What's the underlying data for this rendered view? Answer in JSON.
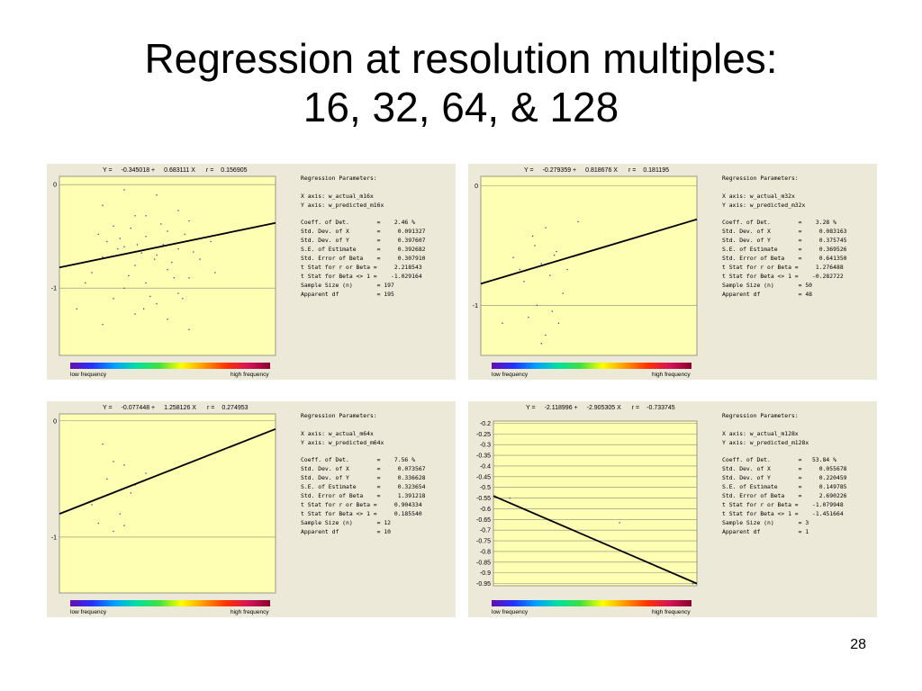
{
  "title": {
    "line1": "Regression at resolution multiples:",
    "line2": "16, 32, 64, & 128"
  },
  "page_number": "28",
  "legend": {
    "low": "low frequency",
    "high": "high frequency"
  },
  "chart_data": [
    {
      "type": "scatter",
      "id": "m16",
      "equation": {
        "y_label": "Y =",
        "intercept": "-0.345018 +",
        "slope": "0.683111 X",
        "r_label": "r =",
        "r": "0.156905"
      },
      "ylim": [
        -1.65,
        0.08
      ],
      "yticks": [
        "0",
        "-1"
      ],
      "ytick_values": [
        0,
        -1
      ],
      "line": {
        "y_left": -0.8,
        "y_right": -0.37
      },
      "points": [
        [
          0.3,
          -0.05
        ],
        [
          0.45,
          -0.1
        ],
        [
          0.2,
          -0.2
        ],
        [
          0.55,
          -0.25
        ],
        [
          0.35,
          -0.3
        ],
        [
          0.6,
          -0.35
        ],
        [
          0.25,
          -0.4
        ],
        [
          0.5,
          -0.45
        ],
        [
          0.4,
          -0.5
        ],
        [
          0.7,
          -0.55
        ],
        [
          0.3,
          -0.6
        ],
        [
          0.55,
          -0.62
        ],
        [
          0.45,
          -0.68
        ],
        [
          0.2,
          -0.7
        ],
        [
          0.65,
          -0.72
        ],
        [
          0.35,
          -0.78
        ],
        [
          0.5,
          -0.82
        ],
        [
          0.15,
          -0.85
        ],
        [
          0.6,
          -0.9
        ],
        [
          0.4,
          -0.95
        ],
        [
          0.3,
          -1.0
        ],
        [
          0.55,
          -1.05
        ],
        [
          0.25,
          -1.1
        ],
        [
          0.45,
          -1.15
        ],
        [
          0.35,
          -1.25
        ],
        [
          0.5,
          -1.3
        ],
        [
          0.2,
          -1.35
        ],
        [
          0.6,
          -1.4
        ],
        [
          0.4,
          -0.3
        ],
        [
          0.28,
          -0.52
        ],
        [
          0.48,
          -0.58
        ],
        [
          0.38,
          -0.66
        ],
        [
          0.52,
          -0.75
        ],
        [
          0.32,
          -0.88
        ],
        [
          0.42,
          -1.08
        ],
        [
          0.58,
          -0.48
        ],
        [
          0.22,
          -0.55
        ],
        [
          0.62,
          -0.65
        ],
        [
          0.12,
          -0.95
        ],
        [
          0.72,
          -0.85
        ],
        [
          0.08,
          -1.2
        ],
        [
          0.33,
          -0.42
        ],
        [
          0.47,
          -0.38
        ],
        [
          0.36,
          -0.58
        ],
        [
          0.44,
          -0.72
        ],
        [
          0.27,
          -0.62
        ],
        [
          0.53,
          -0.9
        ],
        [
          0.39,
          -1.2
        ],
        [
          0.57,
          -1.1
        ],
        [
          0.18,
          -0.48
        ]
      ]
    },
    {
      "type": "scatter",
      "id": "m32",
      "equation": {
        "y_label": "Y =",
        "intercept": "-0.279359 +",
        "slope": "0.818676 X",
        "r_label": "r =",
        "r": "0.181195"
      },
      "ylim": [
        -1.42,
        0.08
      ],
      "yticks": [
        "0",
        "-1"
      ],
      "ytick_values": [
        0,
        -1
      ],
      "line": {
        "y_left": -0.82,
        "y_right": -0.28
      },
      "points": [
        [
          0.3,
          -0.35
        ],
        [
          0.25,
          -0.5
        ],
        [
          0.35,
          -0.55
        ],
        [
          0.15,
          -0.6
        ],
        [
          0.28,
          -0.65
        ],
        [
          0.4,
          -0.7
        ],
        [
          0.32,
          -0.75
        ],
        [
          0.2,
          -0.8
        ],
        [
          0.38,
          -0.9
        ],
        [
          0.26,
          -1.0
        ],
        [
          0.33,
          -1.05
        ],
        [
          0.22,
          -1.1
        ],
        [
          0.36,
          -1.15
        ],
        [
          0.3,
          -1.25
        ],
        [
          0.28,
          -1.32
        ],
        [
          0.1,
          -1.15
        ],
        [
          0.45,
          -0.3
        ],
        [
          0.24,
          -0.42
        ],
        [
          0.34,
          -0.58
        ],
        [
          0.18,
          -0.7
        ]
      ]
    },
    {
      "type": "scatter",
      "id": "m64",
      "equation": {
        "y_label": "Y =",
        "intercept": "-0.077448 +",
        "slope": "1.258126 X",
        "r_label": "r =",
        "r": "0.274953"
      },
      "ylim": [
        -1.48,
        0.06
      ],
      "yticks": [
        "0",
        "-1"
      ],
      "ytick_values": [
        0,
        -1
      ],
      "line": {
        "y_left": -0.8,
        "y_right": -0.07
      },
      "points": [
        [
          0.2,
          -0.2
        ],
        [
          0.25,
          -0.35
        ],
        [
          0.3,
          -0.38
        ],
        [
          0.22,
          -0.5
        ],
        [
          0.35,
          -0.55
        ],
        [
          0.15,
          -0.72
        ],
        [
          0.28,
          -0.8
        ],
        [
          0.25,
          -0.95
        ],
        [
          0.3,
          -0.9
        ],
        [
          0.18,
          -0.88
        ],
        [
          0.33,
          -0.62
        ],
        [
          0.4,
          -0.45
        ]
      ]
    },
    {
      "type": "scatter",
      "id": "m128",
      "equation": {
        "y_label": "Y =",
        "intercept": "-2.118996 +",
        "slope": "-2.905305 X",
        "r_label": "r =",
        "r": "-0.733745"
      },
      "ylim": [
        -0.96,
        -0.19
      ],
      "yticks": [
        "-0.2",
        "-0.25",
        "-0.3",
        "-0.35",
        "-0.4",
        "-0.45",
        "-0.5",
        "-0.55",
        "-0.6",
        "-0.65",
        "-0.7",
        "-0.75",
        "-0.8",
        "-0.85",
        "-0.9",
        "-0.95"
      ],
      "ytick_values": [
        -0.2,
        -0.25,
        -0.3,
        -0.35,
        -0.4,
        -0.45,
        -0.5,
        -0.55,
        -0.6,
        -0.65,
        -0.7,
        -0.75,
        -0.8,
        -0.85,
        -0.9,
        -0.95
      ],
      "line": {
        "y_left": -0.54,
        "y_right": -0.95
      },
      "points": [
        [
          0.08,
          -0.55
        ],
        [
          0.62,
          -0.665
        ],
        [
          0.98,
          -0.95
        ]
      ]
    }
  ],
  "panels": [
    {
      "heading": "Regression Parameters:",
      "x_axis": "X axis: w_actual_m16x",
      "y_axis": "Y axis: w_predicted_m16x",
      "rows": [
        "Coeff. of Det.        =    2.46 %",
        "Std. Dev. of X        =     0.091327",
        "Std. Dev. of Y        =     0.397607",
        "S.E. of Estimate      =     0.392682",
        "Std. Error of Beta    =     0.307910",
        "t Stat for r or Beta =     2.218543",
        "t Stat for Beta <> 1 =    -1.029164",
        "Sample Size (n)       = 197",
        "Apparent df           = 195"
      ]
    },
    {
      "heading": "Regression Parameters:",
      "x_axis": "X axis: w_actual_m32x",
      "y_axis": "Y axis: w_predicted_m32x",
      "rows": [
        "Coeff. of Det.        =    3.28 %",
        "Std. Dev. of X        =     0.083163",
        "Std. Dev. of Y        =     0.375745",
        "S.E. of Estimate      =     0.369526",
        "Std. Error of Beta    =     0.641350",
        "t Stat for r or Beta =     1.276488",
        "t Stat for Beta <> 1 =    -0.282722",
        "Sample Size (n)       = 50",
        "Apparent df           = 48"
      ]
    },
    {
      "heading": "Regression Parameters:",
      "x_axis": "X axis: w_actual_m64x",
      "y_axis": "Y axis: w_predicted_m64x",
      "rows": [
        "Coeff. of Det.        =    7.56 %",
        "Std. Dev. of X        =     0.073567",
        "Std. Dev. of Y        =     0.336628",
        "S.E. of Estimate      =     0.323654",
        "Std. Error of Beta    =     1.391218",
        "t Stat for r or Beta =     0.904334",
        "t Stat for Beta <> 1 =     0.185540",
        "Sample Size (n)       = 12",
        "Apparent df           = 10"
      ]
    },
    {
      "heading": "Regression Parameters:",
      "x_axis": "X axis: w_actual_m128x",
      "y_axis": "Y axis: w_predicted_m128x",
      "rows": [
        "Coeff. of Det.        =   53.84 %",
        "Std. Dev. of X        =     0.055678",
        "Std. Dev. of Y        =     0.220459",
        "S.E. of Estimate      =     0.149785",
        "Std. Error of Beta    =     2.690226",
        "t Stat for r or Beta =    -1.079948",
        "t Stat for Beta <> 1 =    -1.451664",
        "Sample Size (n)       = 3",
        "Apparent df           = 1"
      ]
    }
  ],
  "colors": {
    "plot_bg": "#ffffb4",
    "panel_bg": "#ece9d8",
    "grid": "#8a8a7a",
    "line": "#000000"
  }
}
